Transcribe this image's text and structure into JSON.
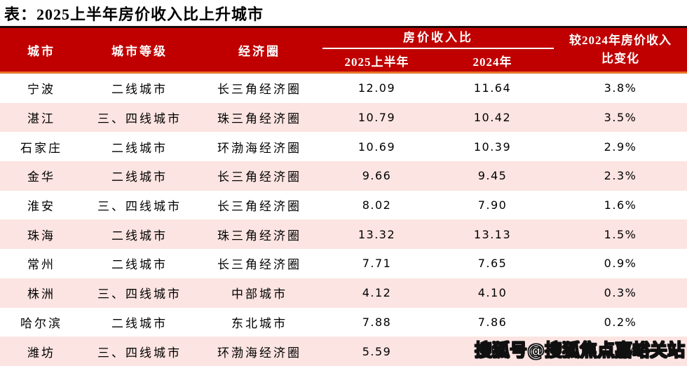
{
  "page_title": "表：2025上半年房价收入比上升城市",
  "table": {
    "header": {
      "city": "城市",
      "tier": "城市等级",
      "circle": "经济圈",
      "ratio_group": "房价收入比",
      "h1_2025": "2025上半年",
      "y2024": "2024年",
      "change_full": "较2024年房价收入比变化",
      "change_line1": "较2024年房价收入",
      "change_line2": "比变化"
    },
    "rows": [
      {
        "city": "宁波",
        "tier": "二线城市",
        "circle": "长三角经济圈",
        "ratio_2025h1": "12.09",
        "ratio_2024": "11.64",
        "change": "3.8%"
      },
      {
        "city": "湛江",
        "tier": "三、四线城市",
        "circle": "珠三角经济圈",
        "ratio_2025h1": "10.79",
        "ratio_2024": "10.42",
        "change": "3.5%"
      },
      {
        "city": "石家庄",
        "tier": "二线城市",
        "circle": "环渤海经济圈",
        "ratio_2025h1": "10.69",
        "ratio_2024": "10.39",
        "change": "2.9%"
      },
      {
        "city": "金华",
        "tier": "二线城市",
        "circle": "长三角经济圈",
        "ratio_2025h1": "9.66",
        "ratio_2024": "9.45",
        "change": "2.3%"
      },
      {
        "city": "淮安",
        "tier": "三、四线城市",
        "circle": "长三角经济圈",
        "ratio_2025h1": "8.02",
        "ratio_2024": "7.90",
        "change": "1.6%"
      },
      {
        "city": "珠海",
        "tier": "二线城市",
        "circle": "珠三角经济圈",
        "ratio_2025h1": "13.32",
        "ratio_2024": "13.13",
        "change": "1.5%"
      },
      {
        "city": "常州",
        "tier": "二线城市",
        "circle": "长三角经济圈",
        "ratio_2025h1": "7.71",
        "ratio_2024": "7.65",
        "change": "0.9%"
      },
      {
        "city": "株洲",
        "tier": "三、四线城市",
        "circle": "中部城市",
        "ratio_2025h1": "4.12",
        "ratio_2024": "4.10",
        "change": "0.3%"
      },
      {
        "city": "哈尔滨",
        "tier": "二线城市",
        "circle": "东北城市",
        "ratio_2025h1": "7.88",
        "ratio_2024": "7.86",
        "change": "0.2%"
      },
      {
        "city": "潍坊",
        "tier": "三、四线城市",
        "circle": "环渤海经济圈",
        "ratio_2025h1": "5.59",
        "ratio_2024": "5.58",
        "change": "0.2%"
      }
    ]
  },
  "watermark": {
    "text": "搜狐号@搜狐焦点嘉峪关站"
  },
  "colors": {
    "header_red": "#C00000",
    "divider_orange": "#E8762C",
    "top_border_dark": "#1E0A0A",
    "stripe_pink": "#FBE4E1",
    "header_text": "#FFFFFF",
    "body_text": "#000000"
  },
  "chart_data": {
    "type": "table",
    "title": "表：2025上半年房价收入比上升城市",
    "columns": [
      "城市",
      "城市等级",
      "经济圈",
      "房价收入比 2025上半年",
      "房价收入比 2024年",
      "较2024年房价收入比变化"
    ],
    "rows": [
      [
        "宁波",
        "二线城市",
        "长三角经济圈",
        12.09,
        11.64,
        "3.8%"
      ],
      [
        "湛江",
        "三、四线城市",
        "珠三角经济圈",
        10.79,
        10.42,
        "3.5%"
      ],
      [
        "石家庄",
        "二线城市",
        "环渤海经济圈",
        10.69,
        10.39,
        "2.9%"
      ],
      [
        "金华",
        "二线城市",
        "长三角经济圈",
        9.66,
        9.45,
        "2.3%"
      ],
      [
        "淮安",
        "三、四线城市",
        "长三角经济圈",
        8.02,
        7.9,
        "1.6%"
      ],
      [
        "珠海",
        "二线城市",
        "珠三角经济圈",
        13.32,
        13.13,
        "1.5%"
      ],
      [
        "常州",
        "二线城市",
        "长三角经济圈",
        7.71,
        7.65,
        "0.9%"
      ],
      [
        "株洲",
        "三、四线城市",
        "中部城市",
        4.12,
        4.1,
        "0.3%"
      ],
      [
        "哈尔滨",
        "二线城市",
        "东北城市",
        7.88,
        7.86,
        "0.2%"
      ],
      [
        "潍坊",
        "三、四线城市",
        "环渤海经济圈",
        5.59,
        5.58,
        "0.2%"
      ]
    ]
  }
}
